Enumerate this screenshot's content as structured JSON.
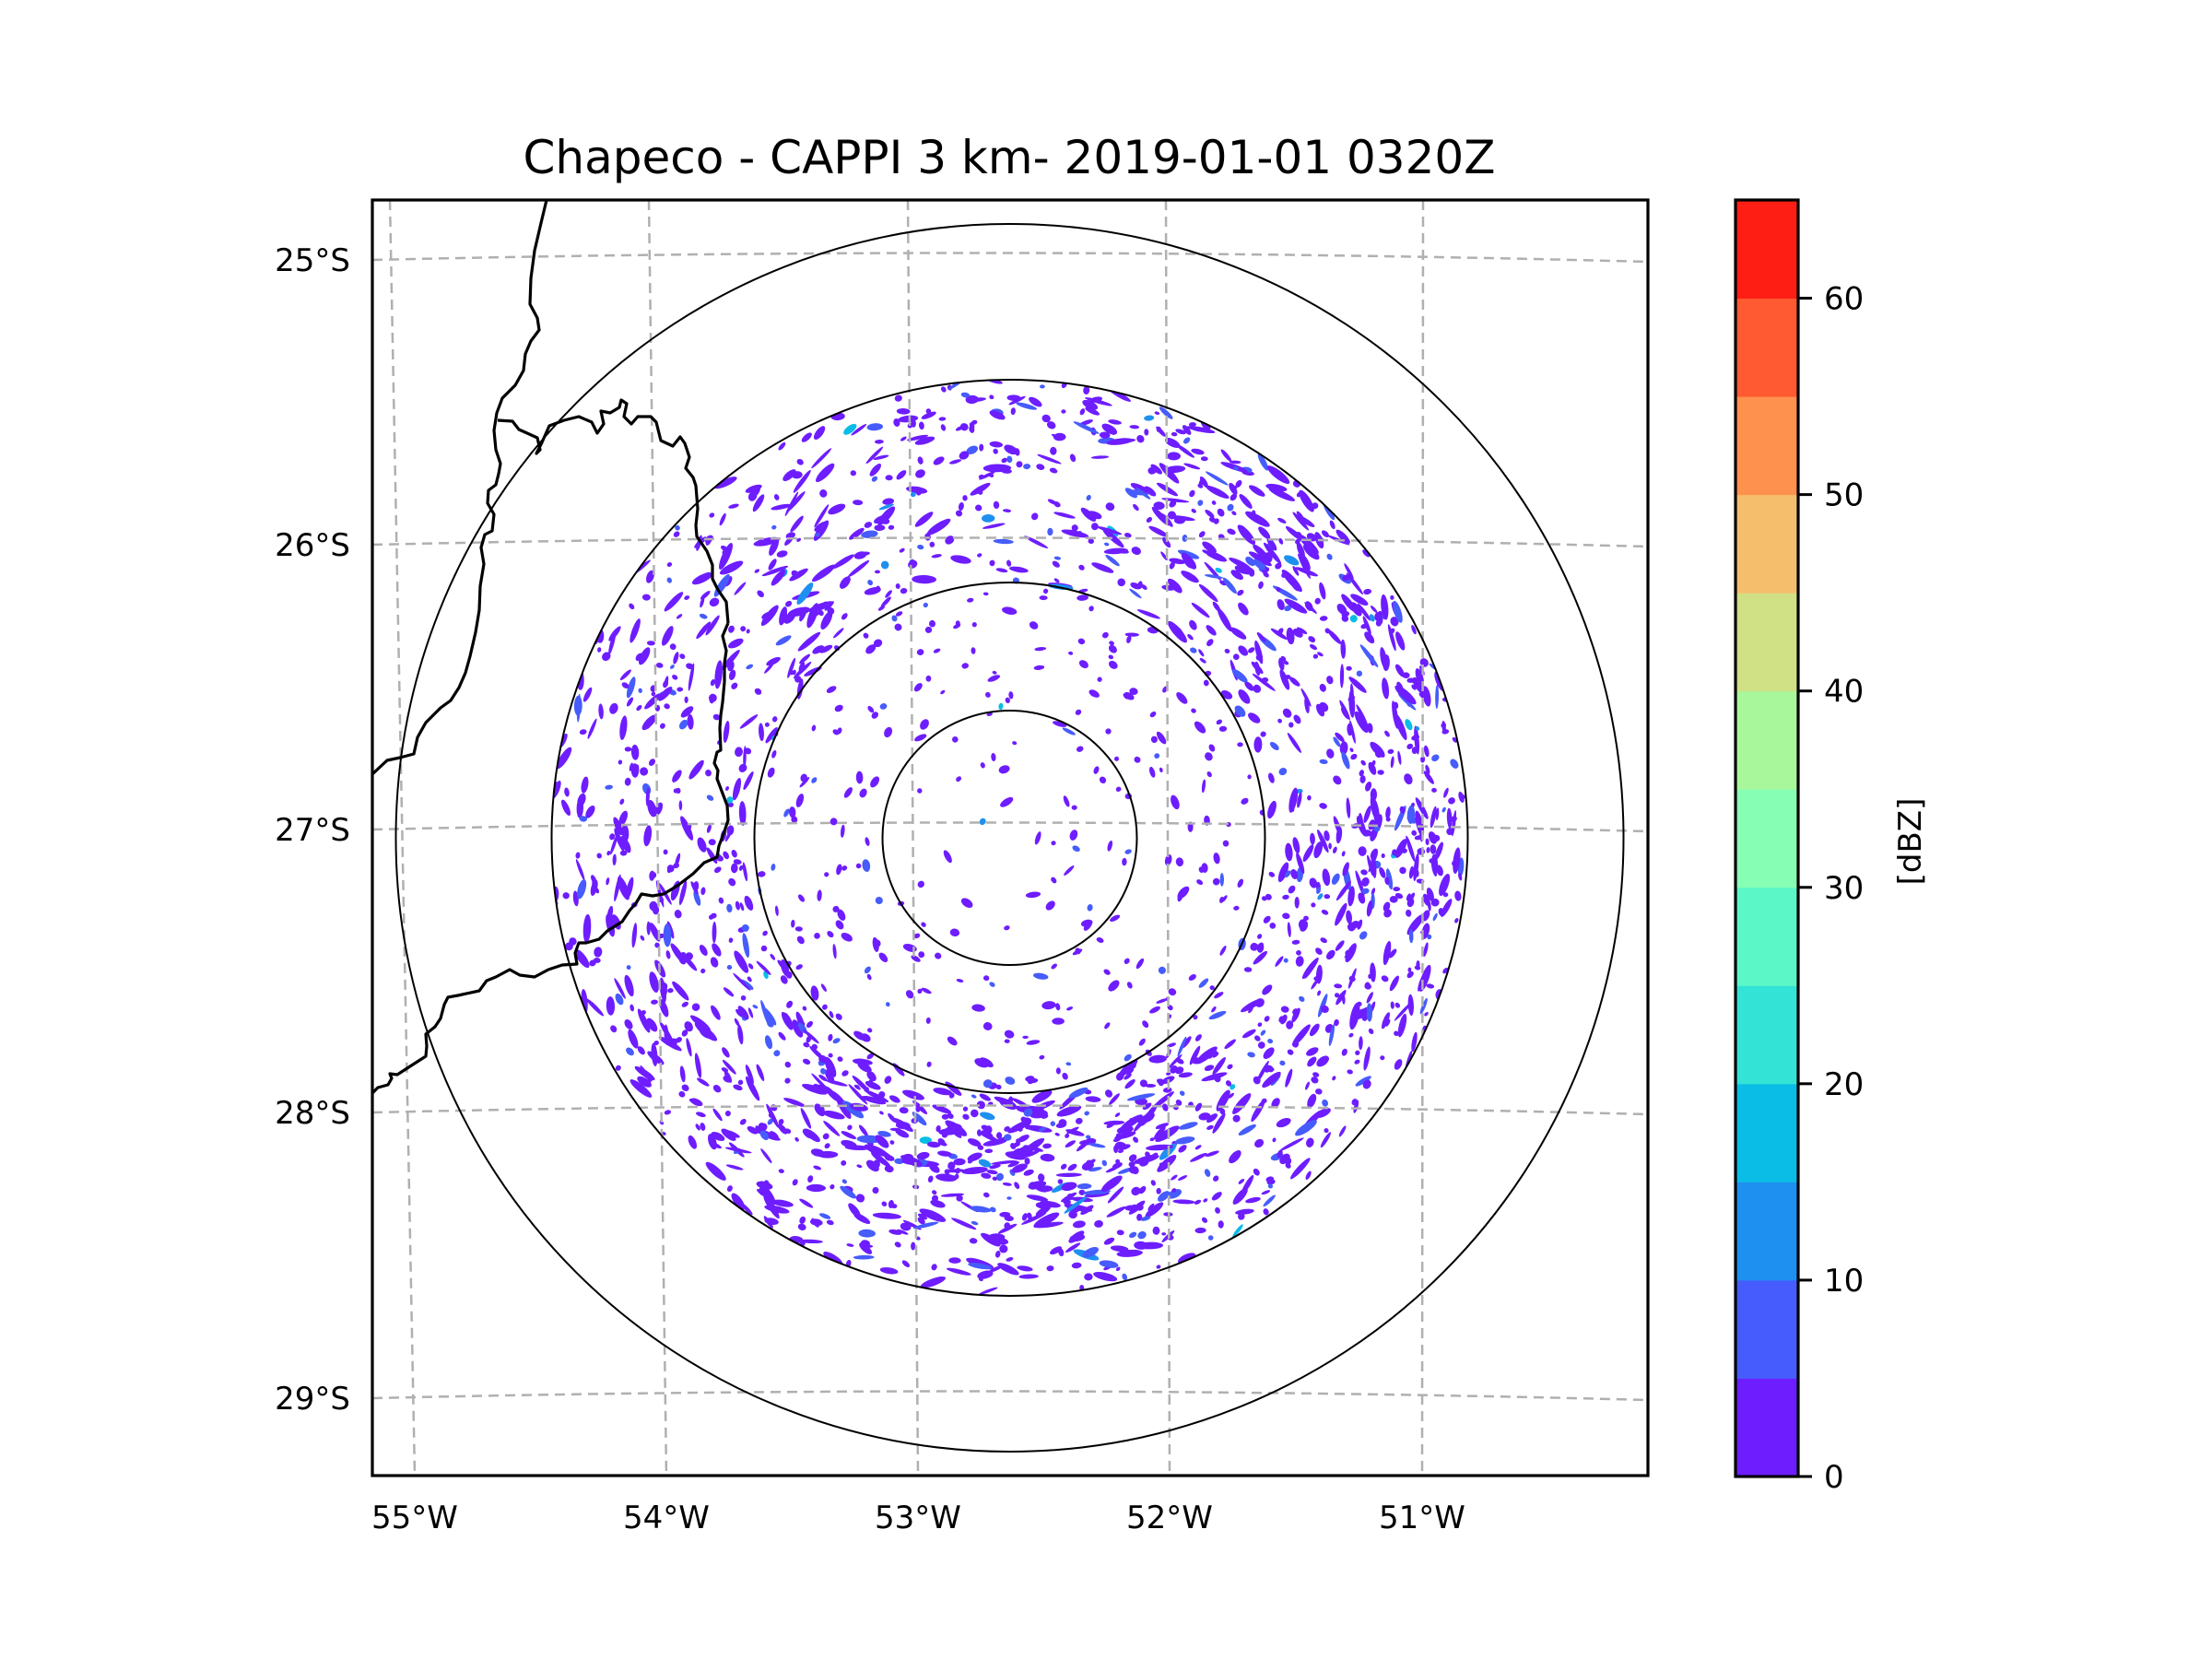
{
  "chart_data": {
    "type": "heatmap",
    "title": "Chapeco - CAPPI 3 km- 2019-01-01 0320Z",
    "xlabel": "",
    "ylabel": "",
    "x_ticks": [
      "55°W",
      "54°W",
      "53°W",
      "52°W",
      "51°W"
    ],
    "x_tick_values": [
      -55,
      -54,
      -53,
      -52,
      -51
    ],
    "y_ticks": [
      "25°S",
      "26°S",
      "27°S",
      "28°S",
      "29°S"
    ],
    "y_tick_values": [
      -25,
      -26,
      -27,
      -28,
      -29
    ],
    "xlim": [
      -55.15,
      -50.05
    ],
    "ylim": [
      -29.28,
      -24.78
    ],
    "grid": true,
    "grid_style": "dashed",
    "grid_color": "#b0b0b0",
    "radar_center": {
      "lon": -52.6,
      "lat": -27.03
    },
    "range_rings": {
      "count": 4,
      "line_color": "#000000"
    },
    "colorbar": {
      "label": "[dBZ]",
      "vmin": 0,
      "vmax": 65,
      "bin_width": 5,
      "ticks": [
        "0",
        "10",
        "20",
        "30",
        "40",
        "50",
        "60"
      ],
      "tick_values": [
        0,
        10,
        20,
        30,
        40,
        50,
        60
      ],
      "colors": [
        "#6e1dff",
        "#465cfc",
        "#1e90f0",
        "#0abde6",
        "#33e3d6",
        "#5cf7c7",
        "#86ffb4",
        "#a8f79a",
        "#d0e084",
        "#f4be6c",
        "#ff914f",
        "#ff5a31",
        "#ff1e14"
      ],
      "placement": "right"
    },
    "echo_summary": {
      "dominant_range_dbz": [
        0,
        5
      ],
      "max_observed_range_dbz": [
        20,
        25
      ],
      "heaviest_sector": "south"
    },
    "map_features": [
      "country borders",
      "state borders"
    ]
  }
}
